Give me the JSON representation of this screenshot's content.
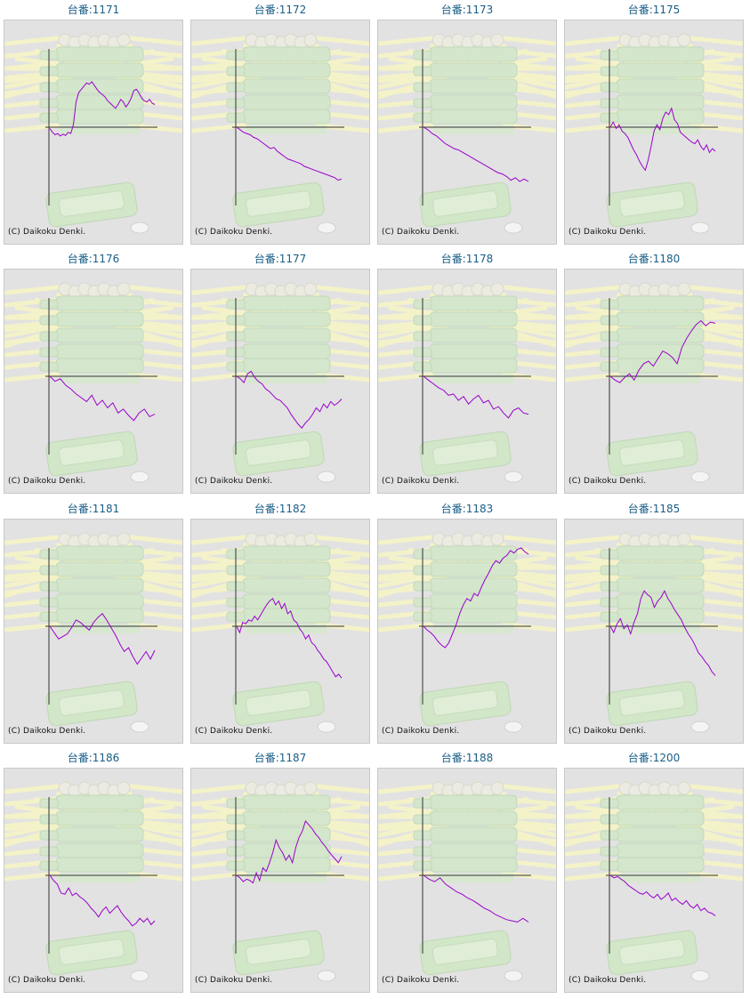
{
  "colors": {
    "line": "#9900cc",
    "axis": "#333333",
    "title": "#1a5e86",
    "panel_bg": "#e2e2e2"
  },
  "copyright": "(C) Daikoku Denki.",
  "chart_data": [
    {
      "type": "line",
      "title": "台番:1171",
      "values": [
        -2,
        -8,
        -12,
        -10,
        -14,
        -11,
        -13,
        -8,
        -10,
        4,
        40,
        55,
        60,
        65,
        70,
        68,
        72,
        66,
        60,
        55,
        52,
        48,
        42,
        38,
        34,
        30,
        36,
        44,
        40,
        32,
        38,
        46,
        58,
        60,
        54,
        46,
        42,
        40,
        44,
        38,
        36
      ]
    },
    {
      "type": "line",
      "title": "台番:1172",
      "values": [
        0,
        -4,
        -8,
        -10,
        -12,
        -16,
        -18,
        -22,
        -26,
        -30,
        -34,
        -32,
        -38,
        -42,
        -46,
        -50,
        -52,
        -54,
        -56,
        -58,
        -62,
        -64,
        -66,
        -68,
        -70,
        -72,
        -74,
        -76,
        -78,
        -80,
        -84,
        -82
      ]
    },
    {
      "type": "line",
      "title": "台番:1173",
      "values": [
        0,
        -4,
        -10,
        -14,
        -20,
        -26,
        -30,
        -34,
        -36,
        -40,
        -44,
        -48,
        -52,
        -56,
        -60,
        -64,
        -68,
        -72,
        -74,
        -78,
        -84,
        -80,
        -86,
        -82,
        -86
      ]
    },
    {
      "type": "line",
      "title": "台番:1175",
      "values": [
        0,
        8,
        -2,
        4,
        -6,
        -10,
        -16,
        -26,
        -36,
        -44,
        -54,
        -62,
        -68,
        -52,
        -30,
        -6,
        4,
        -4,
        14,
        24,
        20,
        30,
        12,
        6,
        -8,
        -12,
        -16,
        -20,
        -24,
        -26,
        -20,
        -30,
        -36,
        -28,
        -40,
        -34,
        -38
      ]
    },
    {
      "type": "line",
      "title": "台番:1176",
      "values": [
        0,
        -8,
        -4,
        -14,
        -20,
        -28,
        -34,
        -40,
        -30,
        -46,
        -38,
        -50,
        -42,
        -58,
        -52,
        -62,
        -70,
        -58,
        -52,
        -64,
        -60
      ]
    },
    {
      "type": "line",
      "title": "台番:1177",
      "values": [
        0,
        -4,
        -10,
        4,
        8,
        -2,
        -8,
        -12,
        -20,
        -24,
        -30,
        -36,
        -38,
        -44,
        -50,
        -60,
        -68,
        -76,
        -82,
        -74,
        -68,
        -60,
        -50,
        -56,
        -44,
        -50,
        -40,
        -46,
        -42,
        -36
      ]
    },
    {
      "type": "line",
      "title": "台番:1178",
      "values": [
        0,
        -6,
        -12,
        -18,
        -22,
        -30,
        -28,
        -38,
        -32,
        -44,
        -36,
        -30,
        -42,
        -38,
        -52,
        -48,
        -58,
        -66,
        -54,
        -50,
        -58,
        -60
      ]
    },
    {
      "type": "line",
      "title": "台番:1180",
      "values": [
        0,
        -6,
        -10,
        -2,
        4,
        -6,
        10,
        20,
        24,
        16,
        28,
        40,
        36,
        30,
        20,
        46,
        60,
        72,
        82,
        88,
        80,
        86,
        84
      ]
    },
    {
      "type": "line",
      "title": "台番:1181",
      "values": [
        0,
        -10,
        -20,
        -16,
        -12,
        -2,
        10,
        6,
        0,
        -6,
        6,
        14,
        20,
        10,
        -2,
        -14,
        -28,
        -40,
        -34,
        -48,
        -60,
        -50,
        -40,
        -52,
        -38
      ]
    },
    {
      "type": "line",
      "title": "台番:1182",
      "values": [
        0,
        -10,
        6,
        4,
        10,
        8,
        16,
        10,
        18,
        26,
        34,
        40,
        44,
        34,
        40,
        28,
        36,
        20,
        24,
        10,
        6,
        -4,
        -10,
        -20,
        -14,
        -26,
        -30,
        -38,
        -44,
        -52,
        -56,
        -64,
        -72,
        -80,
        -76,
        -82
      ]
    },
    {
      "type": "line",
      "title": "台番:1183",
      "values": [
        0,
        -6,
        -10,
        -16,
        -24,
        -30,
        -34,
        -26,
        -12,
        2,
        20,
        34,
        44,
        40,
        52,
        48,
        62,
        74,
        84,
        96,
        104,
        100,
        108,
        112,
        120,
        116,
        122,
        124,
        118,
        114
      ]
    },
    {
      "type": "line",
      "title": "台番:1185",
      "values": [
        0,
        -10,
        4,
        12,
        -4,
        2,
        -12,
        6,
        20,
        44,
        56,
        50,
        46,
        30,
        40,
        46,
        56,
        44,
        36,
        26,
        18,
        10,
        -2,
        -12,
        -20,
        -30,
        -42,
        -48,
        -56,
        -62,
        -72,
        -78
      ]
    },
    {
      "type": "line",
      "title": "台番:1186",
      "values": [
        0,
        -8,
        -14,
        -28,
        -30,
        -20,
        -32,
        -28,
        -34,
        -38,
        -44,
        -52,
        -58,
        -66,
        -56,
        -50,
        -60,
        -54,
        -48,
        -58,
        -66,
        -72,
        -80,
        -76,
        -68,
        -74,
        -68,
        -78,
        -72
      ]
    },
    {
      "type": "line",
      "title": "台番:1187",
      "values": [
        0,
        -4,
        -10,
        -6,
        -8,
        -12,
        4,
        -8,
        12,
        6,
        20,
        36,
        56,
        44,
        36,
        24,
        32,
        20,
        44,
        60,
        70,
        86,
        80,
        74,
        66,
        60,
        52,
        46,
        38,
        32,
        26,
        20,
        30
      ]
    },
    {
      "type": "line",
      "title": "台番:1188",
      "values": [
        0,
        -6,
        -10,
        -4,
        -14,
        -20,
        -26,
        -30,
        -36,
        -40,
        -46,
        -52,
        -56,
        -62,
        -66,
        -70,
        -72,
        -74,
        -68,
        -74
      ]
    },
    {
      "type": "line",
      "title": "台番:1200",
      "values": [
        0,
        -4,
        -2,
        -6,
        -10,
        -16,
        -20,
        -24,
        -28,
        -30,
        -26,
        -32,
        -36,
        -30,
        -38,
        -34,
        -28,
        -40,
        -36,
        -42,
        -46,
        -40,
        -48,
        -52,
        -46,
        -56,
        -52,
        -58,
        -60,
        -64
      ]
    }
  ]
}
